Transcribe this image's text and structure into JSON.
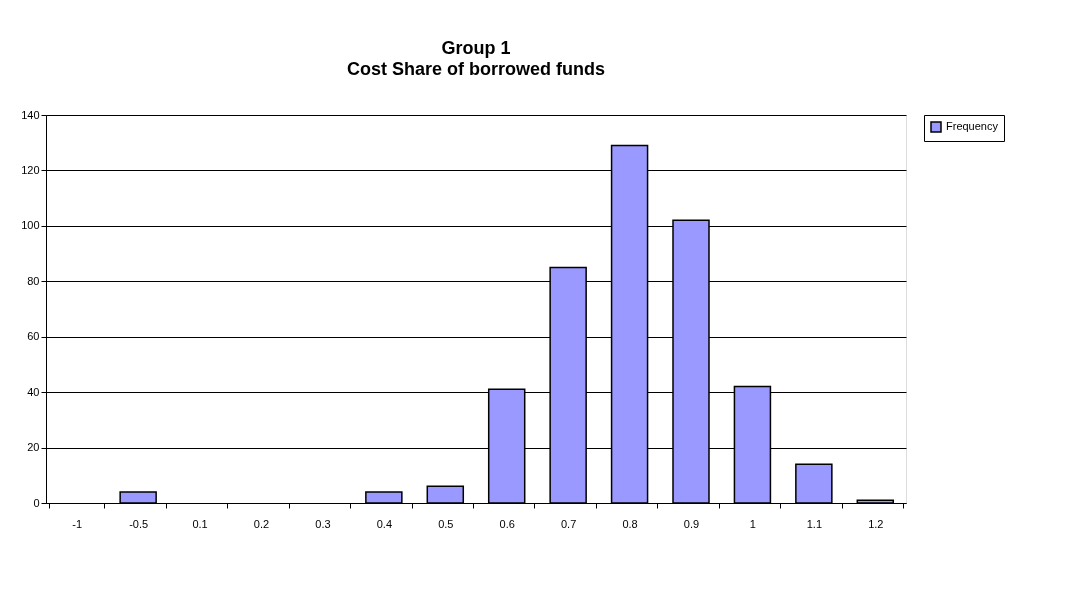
{
  "chart_data": {
    "type": "bar",
    "title": "Group 1",
    "subtitle": "Cost Share of borrowed funds",
    "categories": [
      "-1",
      "-0.5",
      "0.1",
      "0.2",
      "0.3",
      "0.4",
      "0.5",
      "0.6",
      "0.7",
      "0.8",
      "0.9",
      "1",
      "1.1",
      "1.2"
    ],
    "series": [
      {
        "name": "Frequency",
        "color": "#9999ff",
        "values": [
          0,
          4,
          0,
          0,
          0,
          4,
          6,
          41,
          85,
          129,
          102,
          42,
          14,
          1
        ]
      }
    ],
    "ylim": [
      0,
      140
    ],
    "yticks": [
      0,
      20,
      40,
      60,
      80,
      100,
      120,
      140
    ],
    "grid": "y",
    "legend": "right"
  }
}
